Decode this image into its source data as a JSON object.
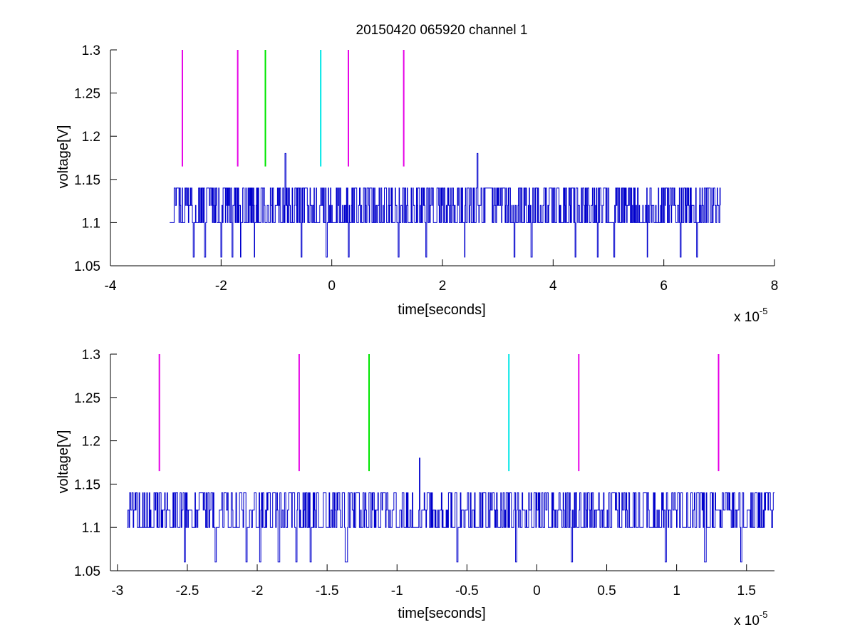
{
  "chart_data": [
    {
      "type": "line",
      "title": "20150420 065920 channel 1",
      "xlabel": "time[seconds]",
      "ylabel": "voltage[V]",
      "x_multiplier_label": "x 10",
      "x_multiplier_exponent": "-5",
      "xlim": [
        -4,
        8
      ],
      "ylim": [
        1.05,
        1.3
      ],
      "xticks": [
        -4,
        -2,
        0,
        2,
        4,
        6,
        8
      ],
      "xtick_labels": [
        "-4",
        "-2",
        "0",
        "2",
        "4",
        "6",
        "8"
      ],
      "yticks": [
        1.05,
        1.1,
        1.15,
        1.2,
        1.25,
        1.3
      ],
      "ytick_labels": [
        "1.05",
        "1.1",
        "1.15",
        "1.2",
        "1.25",
        "1.3"
      ],
      "grid": false,
      "signal": {
        "color": "#0000cc",
        "x_start": -2.93,
        "x_end": 7.02,
        "baseline": 1.1,
        "levels": [
          1.06,
          1.1,
          1.12,
          1.14
        ],
        "spikes": [
          {
            "x": -0.84,
            "y": 1.18
          },
          {
            "x": 2.63,
            "y": 1.18
          }
        ],
        "dips": [
          -2.5,
          -2.3,
          -2.0,
          -1.8,
          -1.65,
          -1.4,
          -0.55,
          -0.1,
          0.3,
          1.2,
          1.7,
          2.4,
          3.3,
          3.6,
          4.4,
          4.8,
          5.1,
          5.7,
          6.3,
          6.6
        ]
      },
      "markers": [
        {
          "x": -2.7,
          "y_from": 1.165,
          "y_to": 1.3,
          "color": "#e600e6"
        },
        {
          "x": -1.7,
          "y_from": 1.165,
          "y_to": 1.3,
          "color": "#e600e6"
        },
        {
          "x": -1.2,
          "y_from": 1.165,
          "y_to": 1.3,
          "color": "#00e600"
        },
        {
          "x": -0.2,
          "y_from": 1.165,
          "y_to": 1.3,
          "color": "#00e6e6"
        },
        {
          "x": 0.3,
          "y_from": 1.165,
          "y_to": 1.3,
          "color": "#e600e6"
        },
        {
          "x": 1.3,
          "y_from": 1.165,
          "y_to": 1.3,
          "color": "#e600e6"
        }
      ]
    },
    {
      "type": "line",
      "title": "",
      "xlabel": "time[seconds]",
      "ylabel": "voltage[V]",
      "x_multiplier_label": "x 10",
      "x_multiplier_exponent": "-5",
      "xlim": [
        -3.05,
        1.7
      ],
      "ylim": [
        1.05,
        1.3
      ],
      "xticks": [
        -3,
        -2.5,
        -2,
        -1.5,
        -1,
        -0.5,
        0,
        0.5,
        1,
        1.5
      ],
      "xtick_labels": [
        "-3",
        "-2.5",
        "-2",
        "-1.5",
        "-1",
        "-0.5",
        "0",
        "0.5",
        "1",
        "1.5"
      ],
      "yticks": [
        1.05,
        1.1,
        1.15,
        1.2,
        1.25,
        1.3
      ],
      "ytick_labels": [
        "1.05",
        "1.1",
        "1.15",
        "1.2",
        "1.25",
        "1.3"
      ],
      "grid": false,
      "signal": {
        "color": "#0000cc",
        "x_start": -2.93,
        "x_end": 1.7,
        "baseline": 1.1,
        "levels": [
          1.06,
          1.1,
          1.12,
          1.14
        ],
        "spikes": [
          {
            "x": -0.84,
            "y": 1.18
          }
        ],
        "dips": [
          -2.52,
          -2.3,
          -2.08,
          -1.98,
          -1.85,
          -1.72,
          -1.62,
          -1.37,
          -0.57,
          -0.15,
          0.25,
          0.92,
          1.2,
          1.46
        ]
      },
      "markers": [
        {
          "x": -2.7,
          "y_from": 1.165,
          "y_to": 1.3,
          "color": "#e600e6"
        },
        {
          "x": -1.7,
          "y_from": 1.165,
          "y_to": 1.3,
          "color": "#e600e6"
        },
        {
          "x": -1.2,
          "y_from": 1.165,
          "y_to": 1.3,
          "color": "#00e600"
        },
        {
          "x": -0.2,
          "y_from": 1.165,
          "y_to": 1.3,
          "color": "#00e6e6"
        },
        {
          "x": 0.3,
          "y_from": 1.165,
          "y_to": 1.3,
          "color": "#e600e6"
        },
        {
          "x": 1.3,
          "y_from": 1.165,
          "y_to": 1.3,
          "color": "#e600e6"
        }
      ]
    }
  ]
}
